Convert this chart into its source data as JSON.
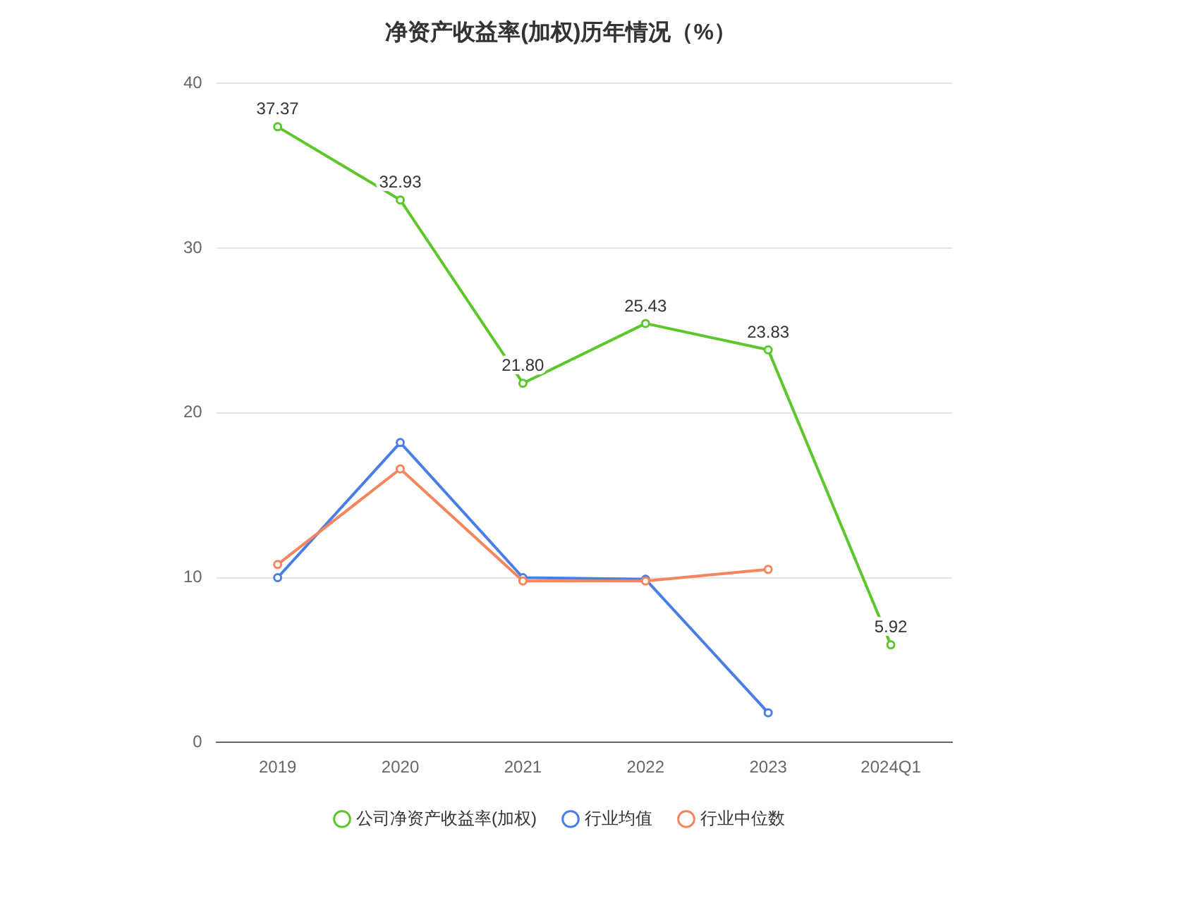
{
  "chart_data": {
    "type": "line",
    "title": "净资产收益率(加权)历年情况（%）",
    "categories": [
      "2019",
      "2020",
      "2021",
      "2022",
      "2023",
      "2024Q1"
    ],
    "series": [
      {
        "name": "公司净资产收益率(加权)",
        "color": "#5cc72a",
        "values": [
          37.37,
          32.93,
          21.8,
          25.43,
          23.83,
          5.92
        ],
        "value_labels": [
          "37.37",
          "32.93",
          "21.80",
          "25.43",
          "23.83",
          "5.92"
        ]
      },
      {
        "name": "行业均值",
        "color": "#4a7ee6",
        "values": [
          10.0,
          18.2,
          10.0,
          9.9,
          1.8,
          null
        ]
      },
      {
        "name": "行业中位数",
        "color": "#f4855c",
        "values": [
          10.8,
          16.6,
          9.8,
          9.8,
          10.5,
          null
        ]
      }
    ],
    "ylim": [
      0,
      40
    ],
    "yticks": [
      0,
      10,
      20,
      30,
      40
    ],
    "grid": "y",
    "legend": "bottom",
    "marker": "circle",
    "line_style": "solid"
  }
}
